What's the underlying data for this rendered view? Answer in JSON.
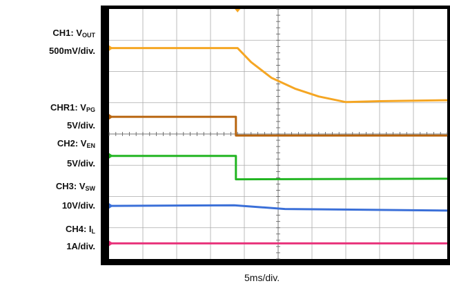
{
  "labels": {
    "ch1_name": "CH1: V",
    "ch1_sub": "OUT",
    "ch1_scale": "500mV/div.",
    "chr1_name": "CHR1: V",
    "chr1_sub": "PG",
    "chr1_scale": "5V/div.",
    "ch2_name": "CH2: V",
    "ch2_sub": "EN",
    "ch2_scale": "5V/div.",
    "ch3_name": "CH3: V",
    "ch3_sub": "SW",
    "ch3_scale": "10V/div.",
    "ch4_name": "CH4: I",
    "ch4_sub": "L",
    "ch4_scale": "1A/div."
  },
  "timebase": "5ms/div.",
  "colors": {
    "ch1": "#f5a623",
    "chr1": "#b8650f",
    "ch2": "#22b522",
    "ch3": "#3a6fd8",
    "ch4": "#e8327a",
    "grid": "#aaaaaa",
    "screen": "#ffffff",
    "frame": "#000000"
  },
  "chart_data": {
    "type": "line",
    "x_unit": "div",
    "y_unit": "div",
    "xlim": [
      0,
      10
    ],
    "ylim": [
      0,
      8
    ],
    "grid": true,
    "series": [
      {
        "name": "CH1: VOUT",
        "color_key": "ch1",
        "points": [
          [
            0,
            6.75
          ],
          [
            3.8,
            6.75
          ],
          [
            4.2,
            6.3
          ],
          [
            4.8,
            5.8
          ],
          [
            5.5,
            5.45
          ],
          [
            6.2,
            5.2
          ],
          [
            7,
            5.02
          ],
          [
            8,
            5.05
          ],
          [
            10,
            5.08
          ]
        ]
      },
      {
        "name": "CHR1: VPG",
        "color_key": "chr1",
        "points": [
          [
            0,
            4.55
          ],
          [
            3.75,
            4.55
          ],
          [
            3.75,
            3.95
          ],
          [
            10,
            3.95
          ]
        ]
      },
      {
        "name": "CH2: VEN",
        "color_key": "ch2",
        "points": [
          [
            0,
            3.3
          ],
          [
            3.75,
            3.3
          ],
          [
            3.75,
            2.55
          ],
          [
            10,
            2.57
          ]
        ]
      },
      {
        "name": "CH3: VSW",
        "color_key": "ch3",
        "points": [
          [
            0,
            1.7
          ],
          [
            3.7,
            1.72
          ],
          [
            5.2,
            1.6
          ],
          [
            10,
            1.55
          ]
        ]
      },
      {
        "name": "CH4: IL",
        "color_key": "ch4",
        "points": [
          [
            0,
            0.5
          ],
          [
            10,
            0.5
          ]
        ]
      }
    ]
  }
}
